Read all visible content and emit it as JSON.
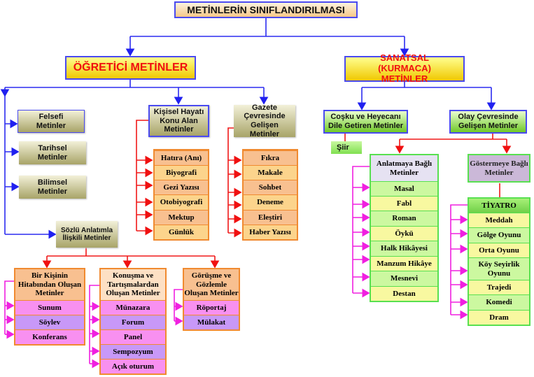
{
  "title": "METİNLERİN SINIFLANDIRILMASI",
  "ogretici": {
    "label": "ÖĞRETİCİ METİNLER",
    "felsefi": "Felsefi Metinler",
    "tarihsel": "Tarihsel Metinler",
    "bilimsel": "Bilimsel Metinler",
    "kisisel": "Kişisel Hayatı Konu Alan Metinler",
    "kisisel_items": [
      "Hatıra (Anı)",
      "Biyografi",
      "Gezi Yazısı",
      "Otobiyografi",
      "Mektup",
      "Günlük"
    ],
    "gazete": "Gazete Çevresinde Gelişen Metinler",
    "gazete_items": [
      "Fıkra",
      "Makale",
      "Sohbet",
      "Deneme",
      "Eleştiri",
      "Haber Yazısı"
    ],
    "sozlu": "Sözlü Anlatımla İlişkili Metinler",
    "hitabet": {
      "header": "Bir Kişinin Hitabından Oluşan Metinler",
      "items": [
        "Sunum",
        "Söylev",
        "Konferans"
      ]
    },
    "konusma": {
      "header": "Konuşma ve Tartışmalardan Oluşan Metinler",
      "items": [
        "Münazara",
        "Forum",
        "Panel",
        "Sempozyum",
        "Açık oturum"
      ]
    },
    "gorusme": {
      "header": "Görüşme ve Gözlemle Oluşan Metinler",
      "items": [
        "Röportaj",
        "Mülakat"
      ]
    }
  },
  "sanatsal": {
    "label": "SANATSAL (KURMACA) METİNLER",
    "cosku": "Coşku ve Heyecanı Dile Getiren Metinler",
    "siir": "Şiir",
    "olay": "Olay Çevresinde Gelişen Metinler",
    "anlatmaya": {
      "header": "Anlatmaya Bağlı Metinler",
      "items": [
        "Masal",
        "Fabl",
        "Roman",
        "Öykü",
        "Halk Hikâyesi",
        "Manzum Hikâye",
        "Mesnevi",
        "Destan"
      ]
    },
    "gostermeye": "Göstermeye Bağlı Metinler",
    "tiyatro": {
      "header": "TİYATRO",
      "items": [
        "Meddah",
        "Gölge Oyunu",
        "Orta Oyunu",
        "Köy Seyirlik Oyunu",
        "Trajedi",
        "Komedi",
        "Dram"
      ]
    }
  }
}
